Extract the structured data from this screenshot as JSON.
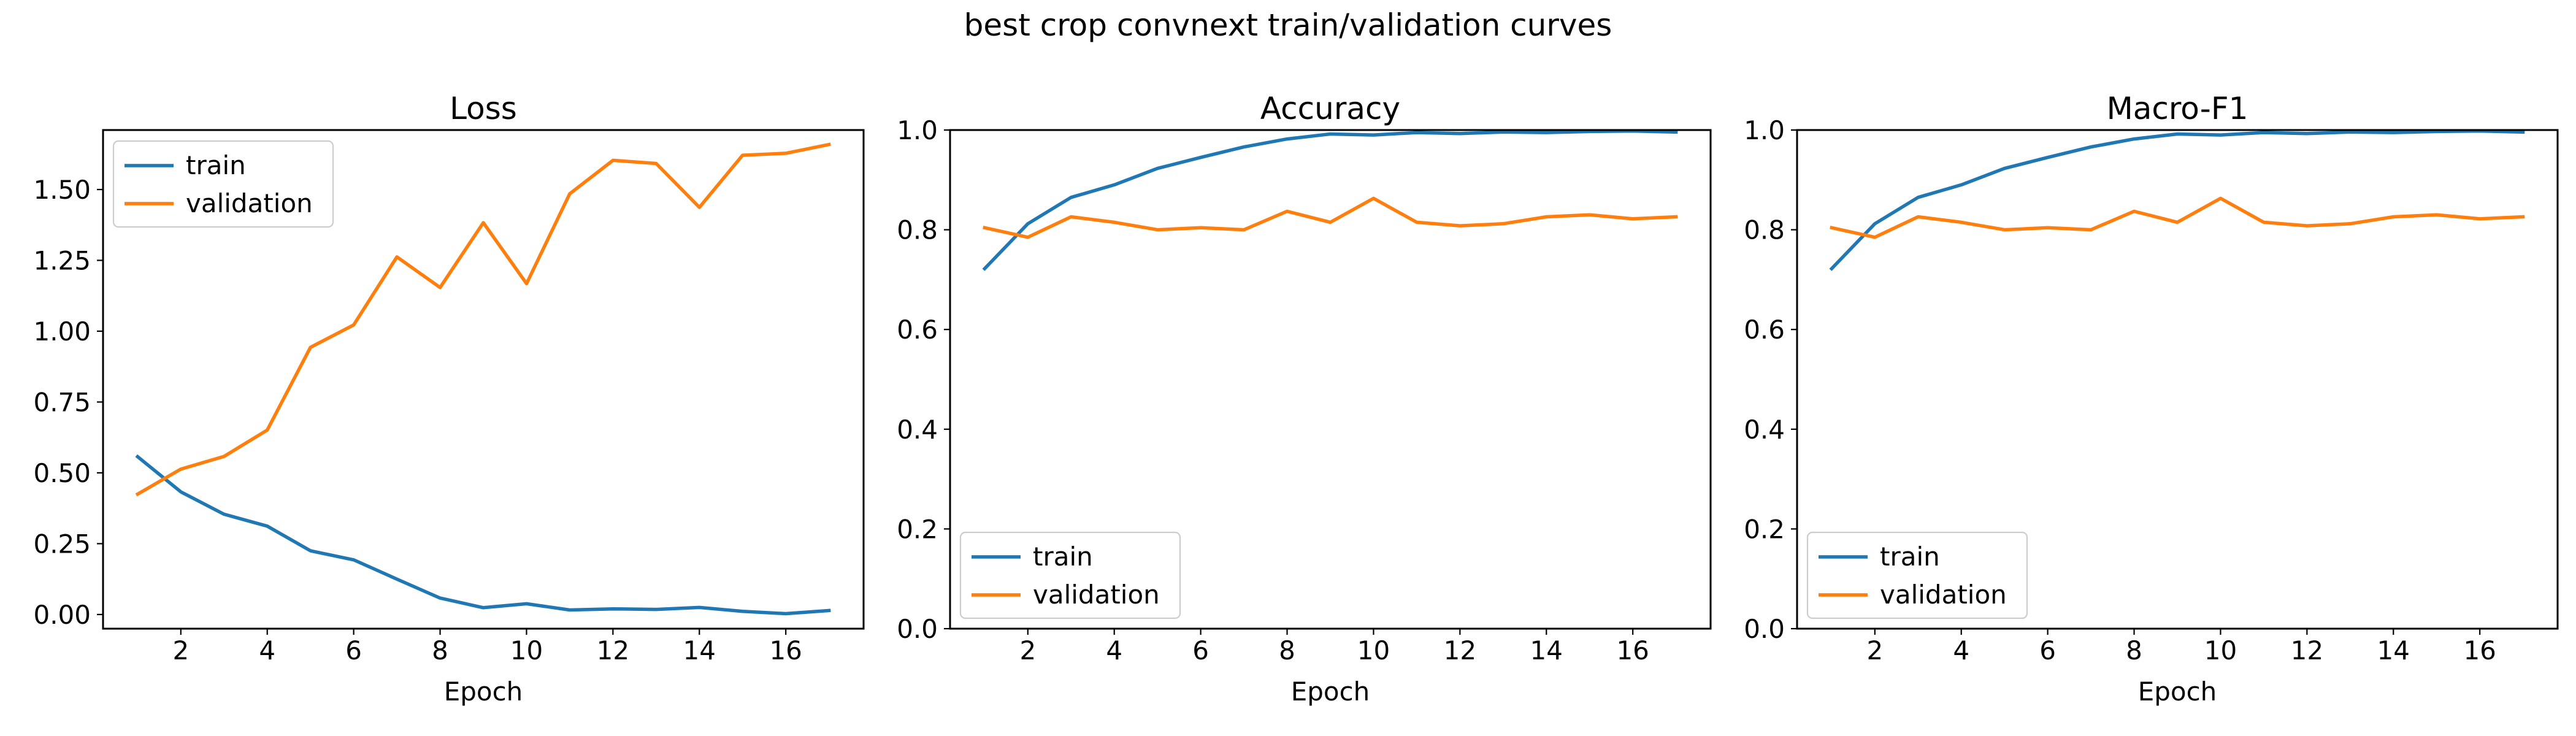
{
  "figure": {
    "suptitle": "best crop convnext train/validation curves"
  },
  "colors": {
    "train": "#1f77b4",
    "validation": "#ff7f0e"
  },
  "chart_data": [
    {
      "type": "line",
      "title": "Loss",
      "xlabel": "Epoch",
      "ylabel": "",
      "x": [
        1,
        2,
        3,
        4,
        5,
        6,
        7,
        8,
        9,
        10,
        11,
        12,
        13,
        14,
        15,
        16,
        17
      ],
      "xlim": [
        0.2,
        17.8
      ],
      "xticks": [
        "2",
        "4",
        "6",
        "8",
        "10",
        "12",
        "14",
        "16"
      ],
      "ylim": [
        -0.05,
        1.71
      ],
      "yticks": [
        "0.00",
        "0.25",
        "0.50",
        "0.75",
        "1.00",
        "1.25",
        "1.50"
      ],
      "grid": false,
      "legend": "upper left",
      "series": [
        {
          "name": "train",
          "color": "#1f77b4",
          "values": [
            0.557,
            0.433,
            0.354,
            0.312,
            0.225,
            0.193,
            0.125,
            0.058,
            0.024,
            0.038,
            0.016,
            0.02,
            0.018,
            0.025,
            0.011,
            0.003,
            0.014
          ]
        },
        {
          "name": "validation",
          "color": "#ff7f0e",
          "values": [
            0.425,
            0.513,
            0.558,
            0.651,
            0.943,
            1.022,
            1.262,
            1.154,
            1.383,
            1.168,
            1.485,
            1.603,
            1.592,
            1.437,
            1.621,
            1.628,
            1.659
          ]
        }
      ]
    },
    {
      "type": "line",
      "title": "Accuracy",
      "xlabel": "Epoch",
      "ylabel": "",
      "x": [
        1,
        2,
        3,
        4,
        5,
        6,
        7,
        8,
        9,
        10,
        11,
        12,
        13,
        14,
        15,
        16,
        17
      ],
      "xlim": [
        0.2,
        17.8
      ],
      "xticks": [
        "2",
        "4",
        "6",
        "8",
        "10",
        "12",
        "14",
        "16"
      ],
      "ylim": [
        0.0,
        1.0
      ],
      "yticks": [
        "0.0",
        "0.2",
        "0.4",
        "0.6",
        "0.8",
        "1.0"
      ],
      "grid": false,
      "legend": "lower left",
      "series": [
        {
          "name": "train",
          "color": "#1f77b4",
          "values": [
            0.722,
            0.812,
            0.865,
            0.89,
            0.923,
            0.945,
            0.966,
            0.982,
            0.992,
            0.99,
            0.995,
            0.993,
            0.996,
            0.995,
            0.997,
            0.998,
            0.996
          ]
        },
        {
          "name": "validation",
          "color": "#ff7f0e",
          "values": [
            0.804,
            0.785,
            0.826,
            0.815,
            0.8,
            0.804,
            0.8,
            0.837,
            0.815,
            0.863,
            0.815,
            0.808,
            0.812,
            0.826,
            0.83,
            0.822,
            0.826
          ]
        }
      ]
    },
    {
      "type": "line",
      "title": "Macro-F1",
      "xlabel": "Epoch",
      "ylabel": "",
      "x": [
        1,
        2,
        3,
        4,
        5,
        6,
        7,
        8,
        9,
        10,
        11,
        12,
        13,
        14,
        15,
        16,
        17
      ],
      "xlim": [
        0.2,
        17.8
      ],
      "xticks": [
        "2",
        "4",
        "6",
        "8",
        "10",
        "12",
        "14",
        "16"
      ],
      "ylim": [
        0.0,
        1.0
      ],
      "yticks": [
        "0.0",
        "0.2",
        "0.4",
        "0.6",
        "0.8",
        "1.0"
      ],
      "grid": false,
      "legend": "lower left",
      "series": [
        {
          "name": "train",
          "color": "#1f77b4",
          "values": [
            0.722,
            0.812,
            0.865,
            0.89,
            0.923,
            0.945,
            0.966,
            0.982,
            0.992,
            0.99,
            0.995,
            0.993,
            0.996,
            0.995,
            0.997,
            0.998,
            0.996
          ]
        },
        {
          "name": "validation",
          "color": "#ff7f0e",
          "values": [
            0.804,
            0.785,
            0.826,
            0.815,
            0.8,
            0.804,
            0.8,
            0.837,
            0.815,
            0.863,
            0.815,
            0.808,
            0.812,
            0.826,
            0.83,
            0.822,
            0.826
          ]
        }
      ]
    }
  ]
}
